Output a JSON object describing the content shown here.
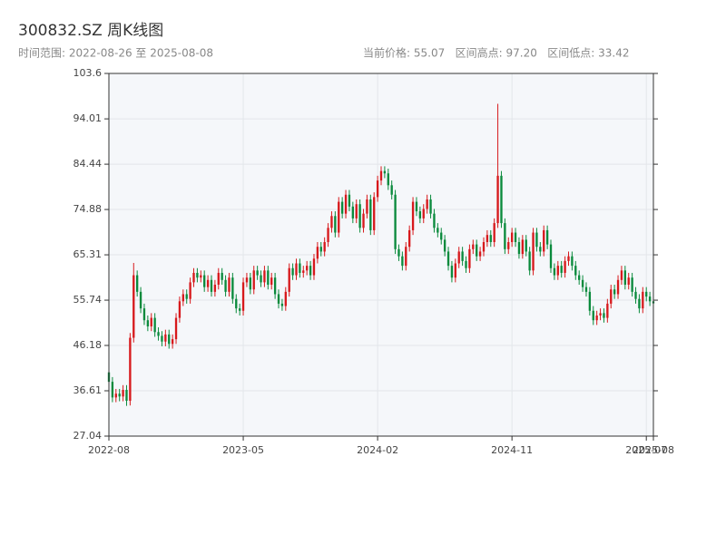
{
  "chart_data": {
    "type": "candlestick",
    "title": "300832.SZ 周K线图",
    "subtitle_left": "时间范围: 2022-08-26 至 2025-08-08",
    "subtitle_right": "当前价格: 55.07   区间高点: 97.20   区间低点: 33.42",
    "up_color": "#d7191c",
    "down_color": "#0a8a3c",
    "grid": true,
    "xlim": [
      0,
      154
    ],
    "xticks": [
      {
        "value": 0,
        "label": "2022-08"
      },
      {
        "value": 38,
        "label": "2023-05"
      },
      {
        "value": 76,
        "label": "2024-02"
      },
      {
        "value": 114,
        "label": "2024-11"
      },
      {
        "value": 152,
        "label": "2025-07"
      },
      {
        "value": 154,
        "label": "2025-08"
      }
    ],
    "ylim": [
      27.04,
      103.6
    ],
    "yticks": [
      27.04,
      36.61,
      46.18,
      55.74,
      65.31,
      74.88,
      84.44,
      94.01,
      103.6
    ],
    "open": [
      40.5,
      38.5,
      35.2,
      36.0,
      35.4,
      36.8,
      34.5,
      47.8,
      61.0,
      57.5,
      54.0,
      51.5,
      50.2,
      52.0,
      49.0,
      48.2,
      47.0,
      48.5,
      46.5,
      47.5,
      52.0,
      55.5,
      57.0,
      56.0,
      59.5,
      61.5,
      60.5,
      61.0,
      58.5,
      60.0,
      57.5,
      59.0,
      61.5,
      60.0,
      57.5,
      60.5,
      56.0,
      54.0,
      53.5,
      59.5,
      60.5,
      58.0,
      62.0,
      61.0,
      59.5,
      62.0,
      59.0,
      60.5,
      57.0,
      55.0,
      54.5,
      57.5,
      62.5,
      61.0,
      63.5,
      61.5,
      62.0,
      63.0,
      61.0,
      64.5,
      67.0,
      66.0,
      68.0,
      71.0,
      73.5,
      70.0,
      76.5,
      74.0,
      78.0,
      75.5,
      73.0,
      76.0,
      71.0,
      74.0,
      77.0,
      70.5,
      77.5,
      81.0,
      83.0,
      82.5,
      80.0,
      78.0,
      66.5,
      65.0,
      63.0,
      67.0,
      70.5,
      76.5,
      74.5,
      73.0,
      75.0,
      77.0,
      74.0,
      71.0,
      70.0,
      68.5,
      66.0,
      63.0,
      60.5,
      63.5,
      66.0,
      64.0,
      62.5,
      66.5,
      67.5,
      65.0,
      66.0,
      68.0,
      69.5,
      68.0,
      72.0,
      82.0,
      72.0,
      66.5,
      68.0,
      70.0,
      68.0,
      65.5,
      68.5,
      66.0,
      62.0,
      70.0,
      67.0,
      66.0,
      70.5,
      67.5,
      62.5,
      61.0,
      63.0,
      61.5,
      64.0,
      65.0,
      63.0,
      61.0,
      60.0,
      58.5,
      57.5,
      53.5,
      51.5,
      52.5,
      53.0,
      52.0,
      55.0,
      58.0,
      57.0,
      60.0,
      62.0,
      59.0,
      60.5,
      57.5,
      56.0,
      54.0,
      57.5,
      56.5,
      55.5
    ],
    "high": [
      41.5,
      39.5,
      37.0,
      37.0,
      37.8,
      37.8,
      48.8,
      63.6,
      62.0,
      58.5,
      55.0,
      52.5,
      53.0,
      53.0,
      50.0,
      49.2,
      49.5,
      49.5,
      48.5,
      53.0,
      56.5,
      58.0,
      58.0,
      60.5,
      62.5,
      62.5,
      62.0,
      62.0,
      61.0,
      61.0,
      60.0,
      62.5,
      62.5,
      61.0,
      61.5,
      61.5,
      57.0,
      55.0,
      60.5,
      61.5,
      61.5,
      63.0,
      63.0,
      62.0,
      63.0,
      63.0,
      61.5,
      61.5,
      58.0,
      56.0,
      58.5,
      63.5,
      63.5,
      64.5,
      64.5,
      63.0,
      64.0,
      64.0,
      65.5,
      68.0,
      68.0,
      69.0,
      72.0,
      74.5,
      74.5,
      77.5,
      77.5,
      79.0,
      79.0,
      76.5,
      77.0,
      77.0,
      75.0,
      78.0,
      78.0,
      78.5,
      82.0,
      84.0,
      84.0,
      83.5,
      81.0,
      79.0,
      67.5,
      66.0,
      68.0,
      71.5,
      77.5,
      77.5,
      75.5,
      76.0,
      78.0,
      78.0,
      75.0,
      72.0,
      71.0,
      69.5,
      67.0,
      64.0,
      64.5,
      67.0,
      67.0,
      65.0,
      67.5,
      68.5,
      68.5,
      67.0,
      69.0,
      70.5,
      70.5,
      73.0,
      97.2,
      83.0,
      73.0,
      69.0,
      71.0,
      71.0,
      69.0,
      69.5,
      69.5,
      67.0,
      71.0,
      71.0,
      68.0,
      71.5,
      71.5,
      68.5,
      63.5,
      64.0,
      64.0,
      65.0,
      66.0,
      66.0,
      64.0,
      62.0,
      61.0,
      59.5,
      58.5,
      54.5,
      53.5,
      54.0,
      54.0,
      56.0,
      59.0,
      59.0,
      61.0,
      63.0,
      63.0,
      61.5,
      61.5,
      58.5,
      57.0,
      58.5,
      58.5,
      57.5,
      56.5
    ],
    "low": [
      37.5,
      34.2,
      34.2,
      34.4,
      34.4,
      33.42,
      33.5,
      46.8,
      56.5,
      53.0,
      50.5,
      49.2,
      49.2,
      48.0,
      47.2,
      46.0,
      46.0,
      45.5,
      45.5,
      46.5,
      51.0,
      54.5,
      55.0,
      55.0,
      58.5,
      59.5,
      59.5,
      57.5,
      57.5,
      56.5,
      56.5,
      58.0,
      59.0,
      56.5,
      56.5,
      55.0,
      53.0,
      52.5,
      52.5,
      58.5,
      57.0,
      57.0,
      60.0,
      58.5,
      58.5,
      58.0,
      58.0,
      56.0,
      54.0,
      53.5,
      53.5,
      56.5,
      60.0,
      60.0,
      60.5,
      60.5,
      61.0,
      60.0,
      60.0,
      63.5,
      65.0,
      65.0,
      67.0,
      70.0,
      69.0,
      69.0,
      73.0,
      73.0,
      74.5,
      72.0,
      72.0,
      70.0,
      70.0,
      73.0,
      69.5,
      69.5,
      76.5,
      80.0,
      81.5,
      79.0,
      77.0,
      65.5,
      64.0,
      62.0,
      62.0,
      66.0,
      69.5,
      73.5,
      72.0,
      72.0,
      74.0,
      73.0,
      70.0,
      69.0,
      67.5,
      65.0,
      62.0,
      59.5,
      59.5,
      62.5,
      63.0,
      61.5,
      61.5,
      65.5,
      64.0,
      64.0,
      65.0,
      67.0,
      67.0,
      67.0,
      71.0,
      71.0,
      65.5,
      65.5,
      67.0,
      67.0,
      64.5,
      64.5,
      65.0,
      61.0,
      61.0,
      66.0,
      65.0,
      65.0,
      66.5,
      61.5,
      60.0,
      60.0,
      60.5,
      60.5,
      63.0,
      62.0,
      60.0,
      59.0,
      57.5,
      56.5,
      52.5,
      50.5,
      50.5,
      51.5,
      51.0,
      51.0,
      54.0,
      56.0,
      56.0,
      59.0,
      58.0,
      58.0,
      56.5,
      55.0,
      53.0,
      53.0,
      55.5,
      54.5,
      54.07
    ],
    "close": [
      38.5,
      35.2,
      36.0,
      35.4,
      36.8,
      34.5,
      47.8,
      61.0,
      57.5,
      54.0,
      51.5,
      50.2,
      52.0,
      49.0,
      48.2,
      47.0,
      48.5,
      46.5,
      47.5,
      52.0,
      55.5,
      57.0,
      56.0,
      59.5,
      61.5,
      60.5,
      61.0,
      58.5,
      60.0,
      57.5,
      59.0,
      61.5,
      60.0,
      57.5,
      60.5,
      56.0,
      54.0,
      53.5,
      59.5,
      60.5,
      58.0,
      62.0,
      61.0,
      59.5,
      62.0,
      59.0,
      60.5,
      57.0,
      55.0,
      54.5,
      57.5,
      62.5,
      61.0,
      63.5,
      61.5,
      62.0,
      63.0,
      61.0,
      64.5,
      67.0,
      66.0,
      68.0,
      71.0,
      73.5,
      70.0,
      76.5,
      74.0,
      78.0,
      75.5,
      73.0,
      76.0,
      71.0,
      74.0,
      77.0,
      70.5,
      77.5,
      81.0,
      83.0,
      82.5,
      80.0,
      78.0,
      66.5,
      65.0,
      63.0,
      67.0,
      70.5,
      76.5,
      74.5,
      73.0,
      75.0,
      77.0,
      74.0,
      71.0,
      70.0,
      68.5,
      66.0,
      63.0,
      60.5,
      63.5,
      66.0,
      64.0,
      62.5,
      66.5,
      67.5,
      65.0,
      66.0,
      68.0,
      69.5,
      68.0,
      72.0,
      82.0,
      72.0,
      66.5,
      68.0,
      70.0,
      68.0,
      65.5,
      68.5,
      66.0,
      62.0,
      70.0,
      67.0,
      66.0,
      70.5,
      67.5,
      62.5,
      61.0,
      63.0,
      61.5,
      64.0,
      65.0,
      63.0,
      61.0,
      60.0,
      58.5,
      57.5,
      53.5,
      51.5,
      52.5,
      53.0,
      52.0,
      55.0,
      58.0,
      57.0,
      60.0,
      62.0,
      59.0,
      60.5,
      57.5,
      56.0,
      54.0,
      57.5,
      56.5,
      55.5,
      55.07
    ]
  }
}
